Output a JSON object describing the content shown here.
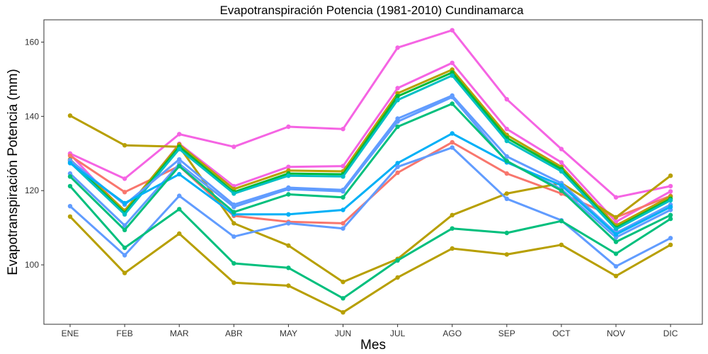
{
  "chart_data": {
    "type": "line",
    "title": "Evapotranspiración Potencia (1981-2010)  Cundinamarca",
    "xlabel": "Mes",
    "ylabel": "Evapotranspiración Potencia  (mm)",
    "categories": [
      "ENE",
      "FEB",
      "MAR",
      "ABR",
      "MAY",
      "JUN",
      "JUL",
      "AGO",
      "SEP",
      "OCT",
      "NOV",
      "DIC"
    ],
    "yticks": [
      100,
      120,
      140,
      160
    ],
    "ylim": [
      84,
      166
    ],
    "grid": false,
    "legend": "none",
    "series": [
      {
        "color": "#F564E3",
        "values": [
          130,
          123.2,
          135.2,
          131.8,
          137.2,
          136.6,
          158.5,
          163.2,
          144.6,
          131.2,
          118.2,
          121.2
        ]
      },
      {
        "color": "#F564E3",
        "values": [
          129.8,
          114.2,
          132.6,
          121.2,
          126.4,
          126.6,
          147.6,
          154.4,
          136.6,
          127.6,
          111.6,
          119.8
        ]
      },
      {
        "color": "#F8766D",
        "values": [
          129.4,
          119.6,
          126.6,
          113.2,
          111.6,
          111.2,
          124.8,
          133,
          124.6,
          119.2,
          112.8,
          118.6
        ]
      },
      {
        "color": "#B79F00",
        "values": [
          140.2,
          132.2,
          131.8,
          111.2,
          105.2,
          95.4,
          101.6,
          113.4,
          119.2,
          122,
          112.8,
          124
        ]
      },
      {
        "color": "#B79F00",
        "values": [
          128.4,
          114.6,
          132.4,
          120.4,
          125.4,
          125.2,
          146.2,
          152.6,
          135,
          126.4,
          110.6,
          118.4
        ]
      },
      {
        "color": "#00BA38",
        "values": [
          128,
          114,
          131.8,
          119.6,
          124.6,
          124.4,
          145.4,
          151.8,
          134.2,
          125.8,
          110,
          117.8
        ]
      },
      {
        "color": "#00BFC4",
        "values": [
          127.6,
          113.6,
          131.2,
          119.2,
          124,
          123.8,
          144.4,
          151,
          133.4,
          125.2,
          109.6,
          117.4
        ]
      },
      {
        "color": "#619CFF",
        "values": [
          128.2,
          116.2,
          128.4,
          116.2,
          120.8,
          120.2,
          139.4,
          145.6,
          129.2,
          122,
          108.6,
          116.2
        ]
      },
      {
        "color": "#619CFF",
        "values": [
          124.6,
          110.6,
          127.2,
          115.6,
          120.4,
          119.8,
          138.6,
          145.2,
          127.8,
          120.4,
          107.4,
          114.8
        ]
      },
      {
        "color": "#00B0F6",
        "values": [
          127.4,
          116.6,
          124.4,
          113.6,
          113.6,
          114.8,
          127.4,
          135.4,
          127.6,
          121.4,
          108.2,
          115.6
        ]
      },
      {
        "color": "#00BF7D",
        "values": [
          123.8,
          109.4,
          126.6,
          114.2,
          119,
          118.2,
          137.2,
          143.4,
          128,
          120,
          106.2,
          113.4
        ]
      },
      {
        "color": "#619CFF",
        "values": [
          115.8,
          102.6,
          118.6,
          107.6,
          111.2,
          109.8,
          126.4,
          131.6,
          117.8,
          112,
          99.6,
          107.2
        ]
      },
      {
        "color": "#00BF7D",
        "values": [
          121.2,
          104.6,
          115,
          100.4,
          99.2,
          91,
          101.2,
          109.8,
          108.6,
          111.8,
          103,
          112.4
        ]
      },
      {
        "color": "#B79F00",
        "values": [
          113,
          97.8,
          108.4,
          95.2,
          94.4,
          87.2,
          96.6,
          104.4,
          102.8,
          105.4,
          97,
          105.4
        ]
      }
    ]
  }
}
